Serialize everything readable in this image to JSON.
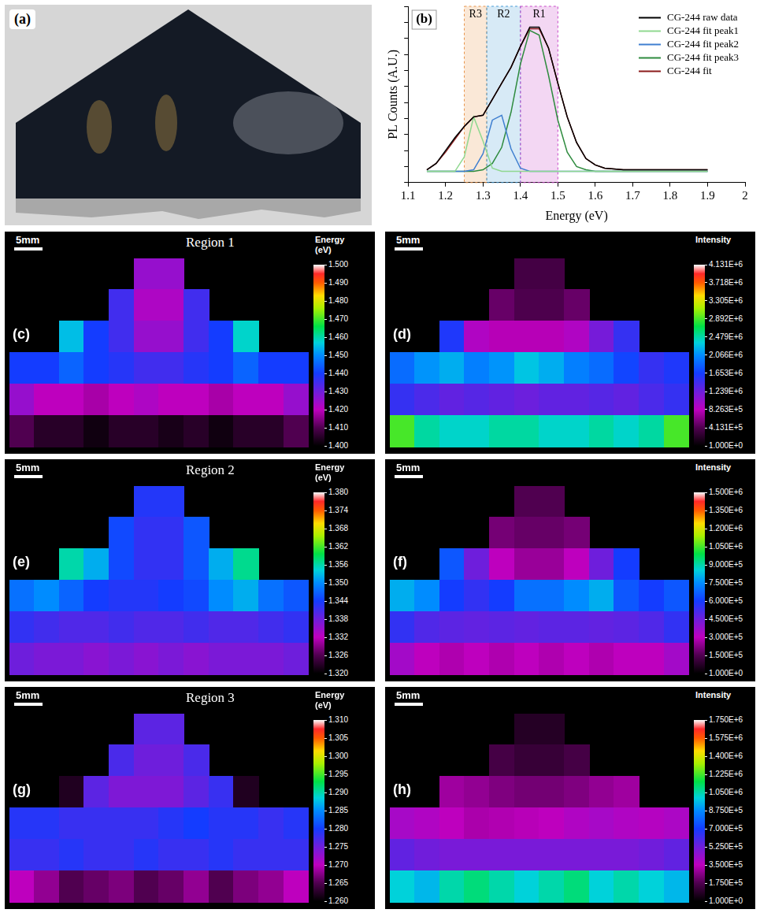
{
  "chart_data": [
    {
      "type": "photo",
      "panel_label": "(a)"
    },
    {
      "type": "line",
      "panel_label": "(b)",
      "xlabel": "Energy (eV)",
      "ylabel": "PL Counts (A.U.)",
      "x": [
        1.15,
        1.175,
        1.2,
        1.225,
        1.25,
        1.275,
        1.3,
        1.325,
        1.35,
        1.375,
        1.4,
        1.425,
        1.45,
        1.475,
        1.5,
        1.525,
        1.55,
        1.575,
        1.6,
        1.625,
        1.65,
        1.675,
        1.7,
        1.725,
        1.75,
        1.775,
        1.8,
        1.825,
        1.85,
        1.875,
        1.9
      ],
      "series": [
        {
          "name": "CG-244 raw data",
          "color": "#000000",
          "values": [
            0.08,
            0.12,
            0.2,
            0.28,
            0.35,
            0.41,
            0.42,
            0.52,
            0.62,
            0.72,
            0.85,
            0.97,
            0.97,
            0.84,
            0.62,
            0.41,
            0.25,
            0.15,
            0.11,
            0.09,
            0.085,
            0.08,
            0.08,
            0.08,
            0.08,
            0.08,
            0.08,
            0.08,
            0.08,
            0.08,
            0.08
          ]
        },
        {
          "name": "CG-244 fit peak1",
          "color": "#90d890",
          "values": [
            0.07,
            0.07,
            0.07,
            0.07,
            0.16,
            0.41,
            0.26,
            0.09,
            0.07,
            0.07,
            0.07,
            0.07,
            0.07,
            0.07,
            0.07,
            0.07,
            0.07,
            0.07,
            0.07,
            0.07,
            0.07,
            0.07,
            0.07,
            0.07,
            0.07,
            0.07,
            0.07,
            0.07,
            0.07,
            0.07,
            0.07
          ]
        },
        {
          "name": "CG-244 fit peak2",
          "color": "#3f7fd0",
          "values": [
            0.07,
            0.07,
            0.07,
            0.07,
            0.07,
            0.08,
            0.18,
            0.39,
            0.42,
            0.21,
            0.09,
            0.07,
            0.07,
            0.07,
            0.07,
            0.07,
            0.07,
            0.07,
            0.07,
            0.07,
            0.07,
            0.07,
            0.07,
            0.07,
            0.07,
            0.07,
            0.07,
            0.07,
            0.07,
            0.07,
            0.07
          ]
        },
        {
          "name": "CG-244 fit peak3",
          "color": "#2e8b3e",
          "values": [
            0.07,
            0.07,
            0.07,
            0.07,
            0.07,
            0.07,
            0.08,
            0.12,
            0.22,
            0.44,
            0.74,
            0.95,
            0.92,
            0.67,
            0.39,
            0.19,
            0.1,
            0.08,
            0.07,
            0.07,
            0.07,
            0.07,
            0.07,
            0.07,
            0.07,
            0.07,
            0.07,
            0.07,
            0.07,
            0.07,
            0.07
          ]
        },
        {
          "name": "CG-244 fit",
          "color": "#8b1a1a",
          "values": [
            0.08,
            0.12,
            0.19,
            0.27,
            0.35,
            0.41,
            0.42,
            0.52,
            0.62,
            0.72,
            0.85,
            0.96,
            0.96,
            0.84,
            0.62,
            0.41,
            0.25,
            0.15,
            0.11,
            0.09,
            0.085,
            0.08,
            0.08,
            0.08,
            0.08,
            0.08,
            0.08,
            0.08,
            0.08,
            0.08,
            0.08
          ]
        }
      ],
      "xlim": [
        1.1,
        2
      ],
      "xticks": [
        1.1,
        1.2,
        1.3,
        1.4,
        1.5,
        1.6,
        1.7,
        1.8,
        1.9,
        2
      ],
      "ylim": [
        0,
        1.1
      ],
      "yticks": [
        0,
        0.1,
        0.2,
        0.3,
        0.4,
        0.5,
        0.6,
        0.7,
        0.8,
        0.9,
        1,
        1.1
      ],
      "tick_labels": "x",
      "grid": false,
      "legend": "upper right",
      "regions": [
        {
          "label": "R3",
          "range": [
            1.25,
            1.31
          ],
          "color": "#e8944a"
        },
        {
          "label": "R2",
          "range": [
            1.31,
            1.4
          ],
          "color": "#4a9fd8"
        },
        {
          "label": "R1",
          "range": [
            1.4,
            1.5
          ],
          "color": "#c84ac8"
        }
      ]
    },
    {
      "type": "heatmap",
      "panel_label": "(c)",
      "title": "Region 1",
      "scale_bar": "5mm",
      "colorbar": {
        "title": "Energy (eV)",
        "range": [
          1.4,
          1.5
        ],
        "ticks": [
          {
            "value": 1.5,
            "label": "1.500"
          },
          {
            "value": 1.49,
            "label": "1.490"
          },
          {
            "value": 1.48,
            "label": "1.480"
          },
          {
            "value": 1.47,
            "label": "1.470"
          },
          {
            "value": 1.46,
            "label": "1.460"
          },
          {
            "value": 1.45,
            "label": "1.450"
          },
          {
            "value": 1.44,
            "label": "1.440"
          },
          {
            "value": 1.43,
            "label": "1.430"
          },
          {
            "value": 1.42,
            "label": "1.420"
          },
          {
            "value": 1.41,
            "label": "1.410"
          },
          {
            "value": 1.4,
            "label": "1.400"
          }
        ]
      },
      "cells": [
        [
          null,
          null,
          null,
          null,
          null,
          1.425,
          1.425,
          null,
          null,
          null,
          null,
          null
        ],
        [
          null,
          null,
          null,
          null,
          1.435,
          1.422,
          1.422,
          1.435,
          null,
          null,
          null,
          null
        ],
        [
          null,
          null,
          1.455,
          1.44,
          1.435,
          1.425,
          1.425,
          1.435,
          1.44,
          1.458,
          null,
          null
        ],
        [
          1.44,
          1.44,
          1.445,
          1.44,
          1.438,
          1.435,
          1.435,
          1.438,
          1.44,
          1.445,
          1.44,
          1.44
        ],
        [
          1.425,
          1.42,
          1.42,
          1.418,
          1.42,
          1.422,
          1.42,
          1.42,
          1.418,
          1.42,
          1.42,
          1.425
        ],
        [
          1.41,
          1.405,
          1.405,
          1.402,
          1.405,
          1.405,
          1.403,
          1.405,
          1.402,
          1.405,
          1.405,
          1.41
        ]
      ]
    },
    {
      "type": "heatmap",
      "panel_label": "(d)",
      "scale_bar": "5mm",
      "colorbar": {
        "title": "Intensity",
        "range": [
          1,
          4131000
        ],
        "ticks": [
          {
            "value": 4131000,
            "label": "4.131E+6"
          },
          {
            "value": 3718000,
            "label": "3.718E+6"
          },
          {
            "value": 3305000,
            "label": "3.305E+6"
          },
          {
            "value": 2892000,
            "label": "2.892E+6"
          },
          {
            "value": 2479000,
            "label": "2.479E+6"
          },
          {
            "value": 2066000,
            "label": "2.066E+6"
          },
          {
            "value": 1653000,
            "label": "1.653E+6"
          },
          {
            "value": 1239000,
            "label": "1.239E+6"
          },
          {
            "value": 826300,
            "label": "8.263E+5"
          },
          {
            "value": 413100,
            "label": "4.131E+5"
          },
          {
            "value": 1,
            "label": "1.000E+0"
          }
        ]
      },
      "cells": [
        [
          null,
          null,
          null,
          null,
          null,
          350000,
          350000,
          null,
          null,
          null,
          null,
          null
        ],
        [
          null,
          null,
          null,
          null,
          500000,
          400000,
          400000,
          500000,
          null,
          null,
          null,
          null
        ],
        [
          null,
          null,
          1600000,
          900000,
          800000,
          800000,
          800000,
          900000,
          1200000,
          1500000,
          null,
          null
        ],
        [
          1900000,
          2100000,
          2200000,
          2000000,
          2100000,
          2300000,
          2200000,
          2000000,
          1900000,
          1700000,
          1500000,
          1600000
        ],
        [
          1500000,
          1400000,
          1300000,
          1350000,
          1300000,
          1250000,
          1300000,
          1300000,
          1350000,
          1300000,
          1400000,
          1500000
        ],
        [
          2900000,
          2500000,
          2400000,
          2400000,
          2500000,
          2500000,
          2400000,
          2400000,
          2500000,
          2400000,
          2500000,
          2900000
        ]
      ]
    },
    {
      "type": "heatmap",
      "panel_label": "(e)",
      "title": "Region 2",
      "scale_bar": "5mm",
      "colorbar": {
        "title": "Energy (eV)",
        "range": [
          1.32,
          1.38
        ],
        "ticks": [
          {
            "value": 1.38,
            "label": "1.380"
          },
          1.374,
          1.368,
          1.362,
          1.356,
          {
            "value": 1.35,
            "label": "1.350"
          },
          1.344,
          1.338,
          1.332,
          1.326,
          {
            "value": 1.32,
            "label": "1.320"
          }
        ]
      },
      "cells": [
        [
          null,
          null,
          null,
          null,
          null,
          1.343,
          1.343,
          null,
          null,
          null,
          null,
          null
        ],
        [
          null,
          null,
          null,
          null,
          1.345,
          1.342,
          1.342,
          1.346,
          null,
          null,
          null,
          null
        ],
        [
          null,
          null,
          1.356,
          1.352,
          1.345,
          1.342,
          1.342,
          1.346,
          1.352,
          1.357,
          null,
          null
        ],
        [
          1.348,
          1.35,
          1.347,
          1.344,
          1.343,
          1.343,
          1.344,
          1.345,
          1.35,
          1.352,
          1.348,
          1.346
        ],
        [
          1.342,
          1.341,
          1.34,
          1.34,
          1.341,
          1.34,
          1.34,
          1.341,
          1.34,
          1.34,
          1.341,
          1.342
        ],
        [
          1.338,
          1.337,
          1.337,
          1.336,
          1.337,
          1.336,
          1.337,
          1.336,
          1.337,
          1.337,
          1.337,
          1.338
        ]
      ]
    },
    {
      "type": "heatmap",
      "panel_label": "(f)",
      "scale_bar": "5mm",
      "colorbar": {
        "title": "Intensity",
        "range": [
          1,
          1500000
        ],
        "ticks": [
          {
            "value": 1500000,
            "label": "1.500E+6"
          },
          {
            "value": 1350000,
            "label": "1.350E+6"
          },
          {
            "value": 1200000,
            "label": "1.200E+6"
          },
          {
            "value": 1050000,
            "label": "1.050E+6"
          },
          {
            "value": 900000,
            "label": "9.000E+5"
          },
          {
            "value": 750000,
            "label": "7.500E+5"
          },
          {
            "value": 600000,
            "label": "6.000E+5"
          },
          {
            "value": 450000,
            "label": "4.500E+5"
          },
          {
            "value": 300000,
            "label": "3.000E+5"
          },
          {
            "value": 150000,
            "label": "1.500E+5"
          },
          {
            "value": 1,
            "label": "1.000E+0"
          }
        ]
      },
      "cells": [
        [
          null,
          null,
          null,
          null,
          null,
          150000,
          150000,
          null,
          null,
          null,
          null,
          null
        ],
        [
          null,
          null,
          null,
          null,
          200000,
          180000,
          180000,
          200000,
          null,
          null,
          null,
          null
        ],
        [
          null,
          null,
          650000,
          450000,
          300000,
          250000,
          250000,
          300000,
          450000,
          600000,
          null,
          null
        ],
        [
          800000,
          750000,
          600000,
          550000,
          600000,
          700000,
          700000,
          750000,
          800000,
          650000,
          600000,
          650000
        ],
        [
          550000,
          500000,
          480000,
          470000,
          480000,
          470000,
          480000,
          480000,
          470000,
          480000,
          500000,
          550000
        ],
        [
          350000,
          300000,
          280000,
          300000,
          280000,
          300000,
          280000,
          300000,
          280000,
          300000,
          300000,
          350000
        ]
      ]
    },
    {
      "type": "heatmap",
      "panel_label": "(g)",
      "title": "Region 3",
      "scale_bar": "5mm",
      "colorbar": {
        "title": "Energy (eV)",
        "range": [
          1.26,
          1.31
        ],
        "ticks": [
          {
            "value": 1.31,
            "label": "1.310"
          },
          1.305,
          {
            "value": 1.3,
            "label": "1.300"
          },
          1.295,
          {
            "value": 1.29,
            "label": "1.290"
          },
          1.285,
          {
            "value": 1.28,
            "label": "1.280"
          },
          1.275,
          {
            "value": 1.27,
            "label": "1.270"
          },
          1.265,
          {
            "value": 1.26,
            "label": "1.260"
          }
        ]
      },
      "cells": [
        [
          null,
          null,
          null,
          null,
          null,
          1.276,
          1.276,
          null,
          null,
          null,
          null,
          null
        ],
        [
          null,
          null,
          null,
          null,
          1.277,
          1.275,
          1.275,
          1.277,
          null,
          null,
          null,
          null
        ],
        [
          null,
          null,
          1.262,
          1.276,
          1.274,
          1.274,
          1.274,
          1.276,
          1.278,
          1.262,
          null,
          null
        ],
        [
          1.279,
          1.279,
          1.278,
          1.278,
          1.278,
          1.278,
          1.279,
          1.28,
          1.279,
          1.279,
          1.278,
          1.279
        ],
        [
          1.278,
          1.278,
          1.279,
          1.278,
          1.278,
          1.279,
          1.278,
          1.278,
          1.279,
          1.278,
          1.278,
          1.278
        ],
        [
          1.27,
          1.268,
          1.265,
          1.266,
          1.267,
          1.265,
          1.266,
          1.268,
          1.265,
          1.267,
          1.268,
          1.27
        ]
      ]
    },
    {
      "type": "heatmap",
      "panel_label": "(h)",
      "scale_bar": "5mm",
      "colorbar": {
        "title": "Intensity",
        "range": [
          1,
          1750000
        ],
        "ticks": [
          {
            "value": 1750000,
            "label": "1.750E+6"
          },
          {
            "value": 1575000,
            "label": "1.575E+6"
          },
          {
            "value": 1400000,
            "label": "1.400E+6"
          },
          {
            "value": 1225000,
            "label": "1.225E+6"
          },
          {
            "value": 1050000,
            "label": "1.050E+6"
          },
          {
            "value": 875000,
            "label": "8.750E+5"
          },
          {
            "value": 700000,
            "label": "7.000E+5"
          },
          {
            "value": 525000,
            "label": "5.250E+5"
          },
          {
            "value": 350000,
            "label": "3.500E+5"
          },
          {
            "value": 175000,
            "label": "1.750E+5"
          },
          {
            "value": 1,
            "label": "1.000E+0"
          }
        ]
      },
      "cells": [
        [
          null,
          null,
          null,
          null,
          null,
          80000,
          80000,
          null,
          null,
          null,
          null,
          null
        ],
        [
          null,
          null,
          null,
          null,
          150000,
          120000,
          120000,
          150000,
          null,
          null,
          null,
          null
        ],
        [
          null,
          null,
          300000,
          280000,
          250000,
          230000,
          230000,
          250000,
          280000,
          300000,
          null,
          null
        ],
        [
          400000,
          380000,
          350000,
          320000,
          330000,
          340000,
          350000,
          380000,
          400000,
          380000,
          370000,
          390000
        ],
        [
          550000,
          520000,
          500000,
          500000,
          500000,
          500000,
          500000,
          500000,
          500000,
          500000,
          520000,
          550000
        ],
        [
          1000000,
          950000,
          1050000,
          1100000,
          1050000,
          1000000,
          1050000,
          1100000,
          1000000,
          1050000,
          1000000,
          950000
        ]
      ]
    }
  ]
}
